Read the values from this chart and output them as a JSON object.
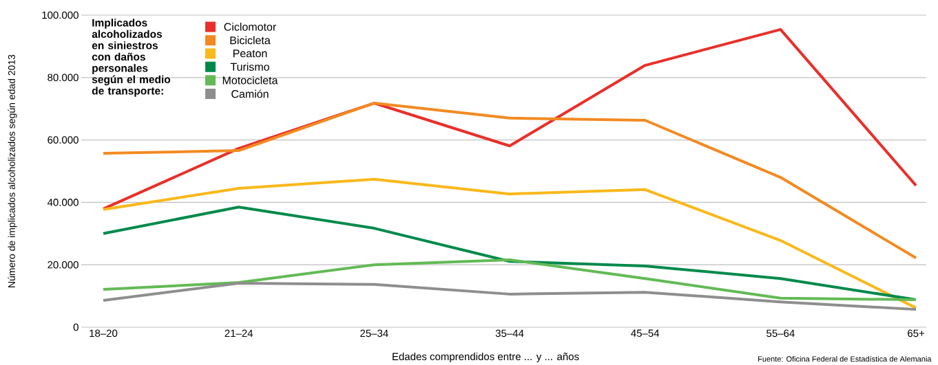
{
  "chart_data": {
    "type": "line",
    "ylabel": "Número de implicados alcoholizados según edad 2013",
    "xlabel": "Edades comprendidos entre  ... y  ... años",
    "legend_title": "Implicados alcoholizados en siniestros con daños personales según el medio de transporte:",
    "annotations": [
      "Fuente: Oficina Federal de Estadística de Alemania"
    ],
    "categories": [
      "18–20",
      "21–24",
      "25–34",
      "35–44",
      "45–54",
      "55–64",
      "65+"
    ],
    "series": [
      {
        "name": "Ciclomotor",
        "color": "#e8302a",
        "values": [
          37900,
          57300,
          71800,
          58100,
          83900,
          95400,
          45400
        ]
      },
      {
        "name": "Bicicleta",
        "color": "#f28a22",
        "values": [
          55700,
          56600,
          71800,
          67000,
          66300,
          48000,
          22200
        ]
      },
      {
        "name": "Peaton",
        "color": "#f9b81b",
        "values": [
          37700,
          44500,
          47400,
          42700,
          44100,
          27800,
          6200
        ]
      },
      {
        "name": "Turismo",
        "color": "#00894b",
        "values": [
          30000,
          38500,
          31700,
          21100,
          19600,
          15600,
          8800
        ]
      },
      {
        "name": "Motocicleta",
        "color": "#63ba55",
        "values": [
          12100,
          14300,
          20000,
          21600,
          15600,
          9300,
          8800
        ]
      },
      {
        "name": "Camión",
        "color": "#8e8e8e",
        "values": [
          8600,
          14100,
          13700,
          10600,
          11200,
          8100,
          5700
        ]
      }
    ],
    "ylim": [
      0,
      100000
    ],
    "yticks": [
      {
        "value": 0,
        "label": "0"
      },
      {
        "value": 20000,
        "label": "20.000"
      },
      {
        "value": 40000,
        "label": "40.000"
      },
      {
        "value": 60000,
        "label": "60.000"
      },
      {
        "value": 80000,
        "label": "80.000"
      },
      {
        "value": 100000,
        "label": "100.000"
      }
    ],
    "grid": "y",
    "legend": "top left"
  }
}
